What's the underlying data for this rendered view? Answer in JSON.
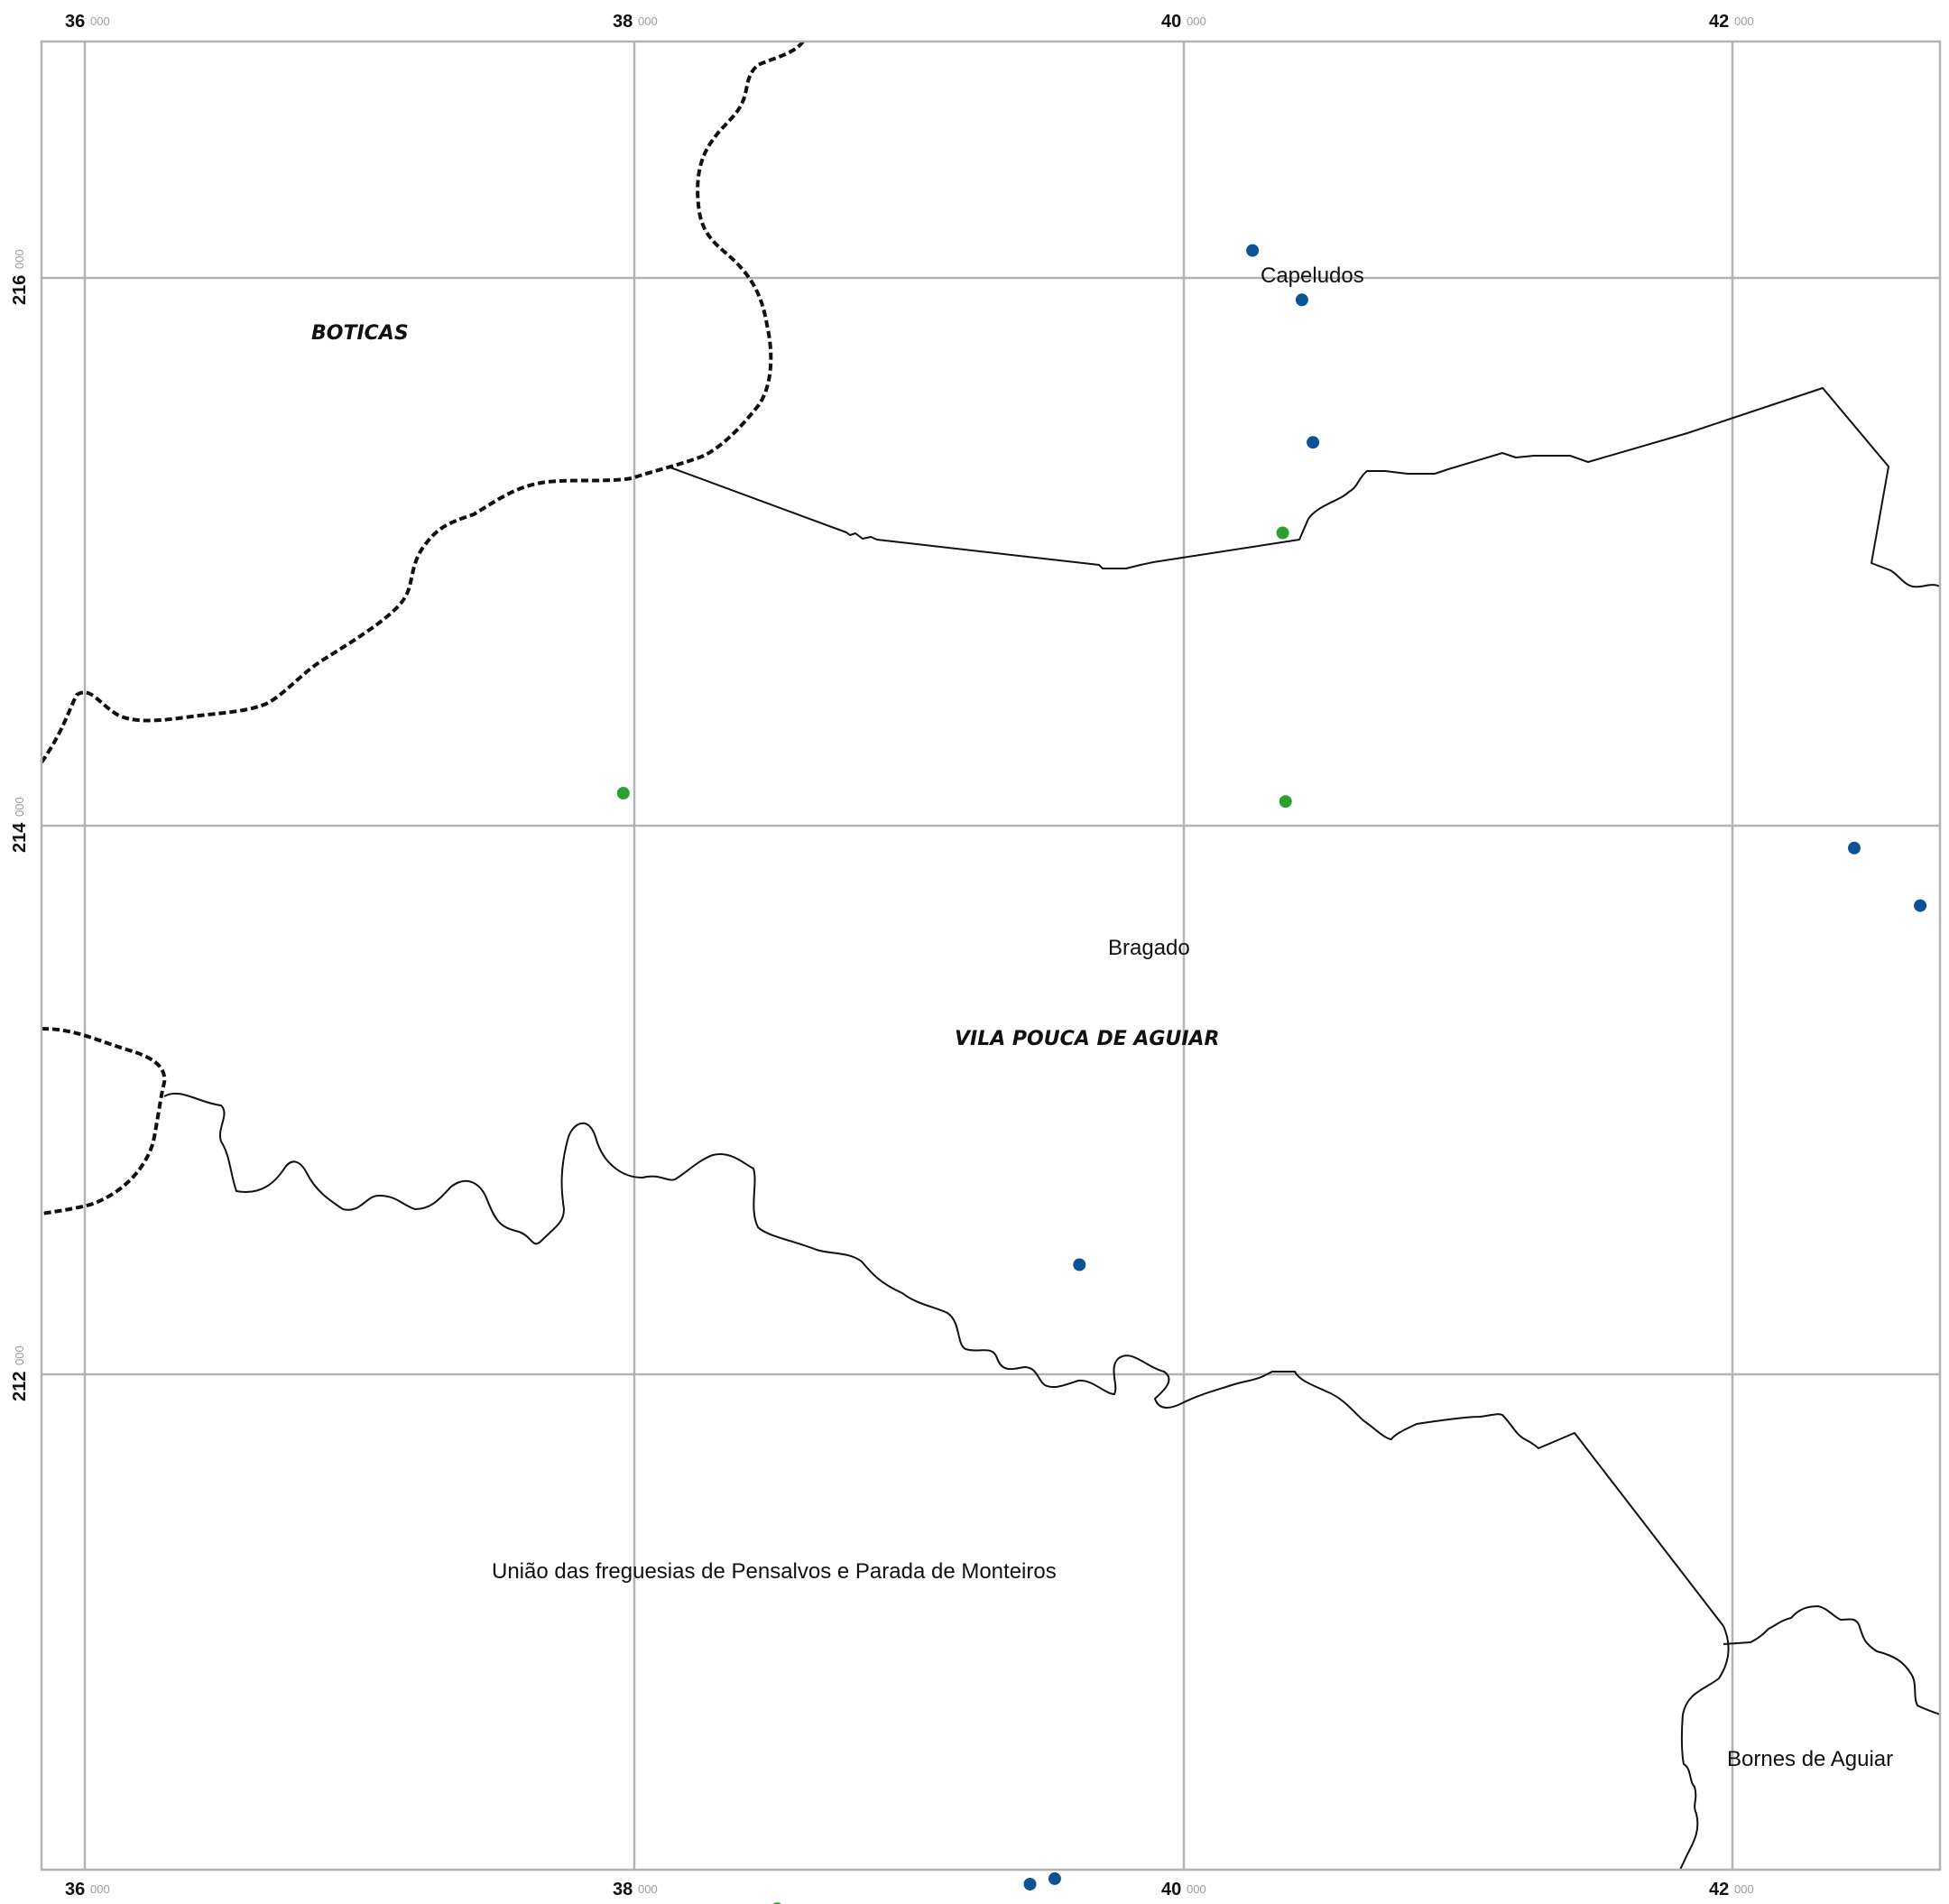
{
  "axes": {
    "x_ticks": [
      {
        "major": "36",
        "minor": "000"
      },
      {
        "major": "38",
        "minor": "000"
      },
      {
        "major": "40",
        "minor": "000"
      },
      {
        "major": "42",
        "minor": "000"
      }
    ],
    "y_ticks": [
      {
        "major": "216",
        "minor": "000"
      },
      {
        "major": "214",
        "minor": "000"
      },
      {
        "major": "212",
        "minor": "000"
      }
    ]
  },
  "labels": {
    "municipalities": [
      "BOTICAS",
      "VILA POUCA DE AGUIAR"
    ],
    "parishes": [
      "Capeludos",
      "Bragado",
      "União das freguesias de Pensalvos e Parada de Monteiros",
      "Bornes de Aguiar"
    ]
  },
  "colors": {
    "point_blue": "#0b5394",
    "point_green": "#2ca02c",
    "grid": "#b3b3b3",
    "boundary": "#111111"
  },
  "points": {
    "blue": [
      {
        "x": 40.25,
        "y": 216.1
      },
      {
        "x": 40.43,
        "y": 215.92
      },
      {
        "x": 40.47,
        "y": 215.4
      },
      {
        "x": 42.44,
        "y": 213.92
      },
      {
        "x": 42.68,
        "y": 213.71
      },
      {
        "x": 39.62,
        "y": 212.4
      },
      {
        "x": 39.53,
        "y": 210.16
      },
      {
        "x": 39.44,
        "y": 210.14
      }
    ],
    "green": [
      {
        "x": 40.36,
        "y": 215.07
      },
      {
        "x": 37.96,
        "y": 214.12
      },
      {
        "x": 40.37,
        "y": 214.09
      },
      {
        "x": 38.52,
        "y": 210.05
      }
    ]
  }
}
